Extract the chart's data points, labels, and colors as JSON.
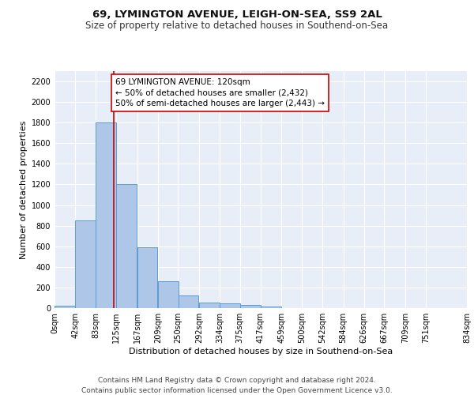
{
  "title_line1": "69, LYMINGTON AVENUE, LEIGH-ON-SEA, SS9 2AL",
  "title_line2": "Size of property relative to detached houses in Southend-on-Sea",
  "xlabel": "Distribution of detached houses by size in Southend-on-Sea",
  "ylabel": "Number of detached properties",
  "bar_values": [
    25,
    850,
    1800,
    1200,
    590,
    260,
    125,
    50,
    45,
    30,
    18,
    0,
    0,
    0,
    0,
    0,
    0,
    0
  ],
  "bar_left_edges": [
    0,
    42,
    83,
    125,
    167,
    209,
    250,
    292,
    334,
    375,
    417,
    459,
    500,
    542,
    584,
    626,
    667,
    709
  ],
  "bar_width": 41.5,
  "tick_labels": [
    "0sqm",
    "42sqm",
    "83sqm",
    "125sqm",
    "167sqm",
    "209sqm",
    "250sqm",
    "292sqm",
    "334sqm",
    "375sqm",
    "417sqm",
    "459sqm",
    "500sqm",
    "542sqm",
    "584sqm",
    "626sqm",
    "667sqm",
    "709sqm",
    "751sqm",
    "834sqm"
  ],
  "bar_color": "#aec6e8",
  "bar_edge_color": "#5b9bd5",
  "vline_x": 120,
  "vline_color": "#cc0000",
  "annotation_text": "69 LYMINGTON AVENUE: 120sqm\n← 50% of detached houses are smaller (2,432)\n50% of semi-detached houses are larger (2,443) →",
  "annotation_box_color": "#ffffff",
  "annotation_border_color": "#cc0000",
  "ylim": [
    0,
    2300
  ],
  "xlim": [
    0,
    834
  ],
  "background_color": "#e8eef7",
  "footer_line1": "Contains HM Land Registry data © Crown copyright and database right 2024.",
  "footer_line2": "Contains public sector information licensed under the Open Government Licence v3.0.",
  "title_fontsize": 9.5,
  "subtitle_fontsize": 8.5,
  "axis_label_fontsize": 8,
  "tick_fontsize": 7,
  "annotation_fontsize": 7.5,
  "footer_fontsize": 6.5
}
